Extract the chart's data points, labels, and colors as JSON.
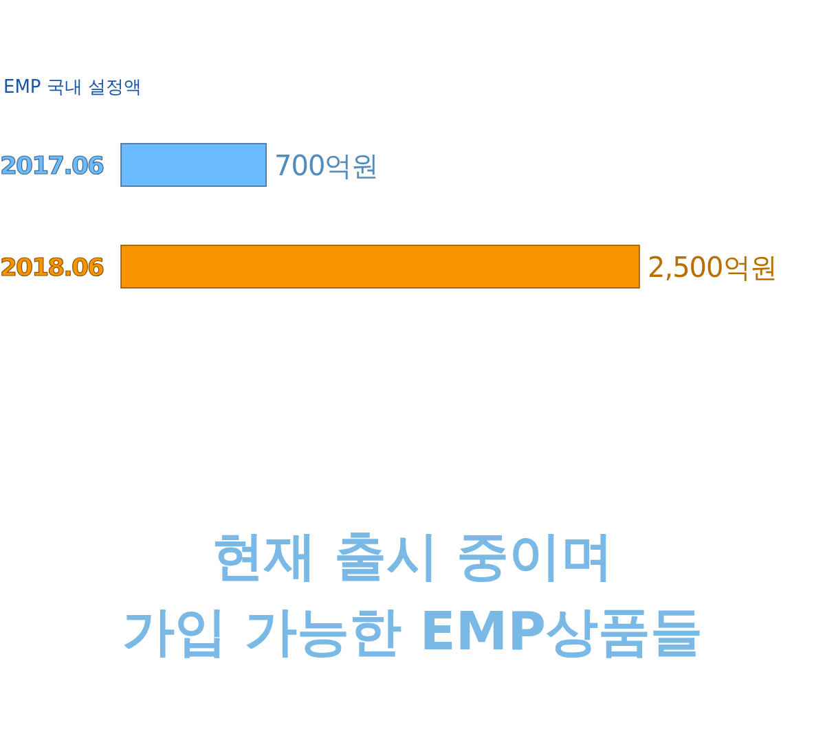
{
  "chart_data": {
    "type": "bar",
    "orientation": "horizontal",
    "title": "EMP 국내 설정액",
    "categories": [
      "2017.06",
      "2018.06"
    ],
    "values": [
      700,
      2500
    ],
    "colors": [
      "#6cbbff",
      "#f79400"
    ],
    "value_labels": [
      "700억원",
      "2,500억원"
    ],
    "xlim": [
      0,
      2500
    ],
    "annotations": [
      "현재 출시 중이며\n가입 가능한 EMP상품들"
    ]
  }
}
